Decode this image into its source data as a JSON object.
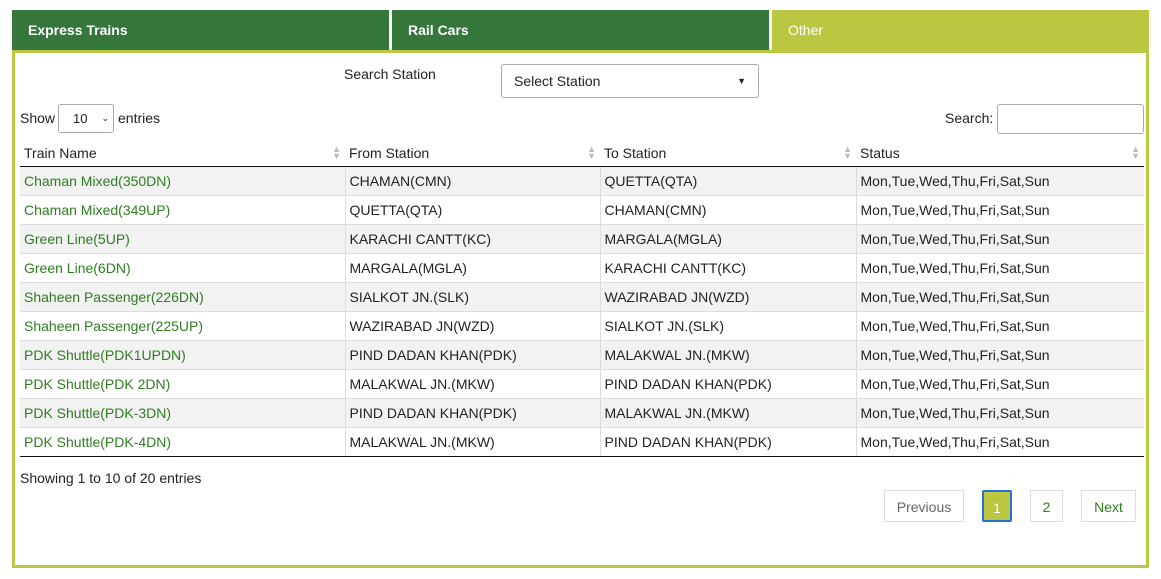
{
  "tabs": [
    "Express Trains",
    "Rail Cars",
    "Other"
  ],
  "active_tab": 2,
  "search_station": {
    "label": "Search Station",
    "placeholder": "Select Station"
  },
  "length": {
    "before": "Show",
    "value": "10",
    "after": "entries"
  },
  "search": {
    "label": "Search:"
  },
  "table": {
    "headers": [
      "Train Name",
      "From Station",
      "To Station",
      "Status"
    ],
    "rows": [
      [
        "Chaman Mixed(350DN)",
        "CHAMAN(CMN)",
        "QUETTA(QTA)",
        "Mon,Tue,Wed,Thu,Fri,Sat,Sun"
      ],
      [
        "Chaman Mixed(349UP)",
        "QUETTA(QTA)",
        "CHAMAN(CMN)",
        "Mon,Tue,Wed,Thu,Fri,Sat,Sun"
      ],
      [
        "Green Line(5UP)",
        "KARACHI CANTT(KC)",
        "MARGALA(MGLA)",
        "Mon,Tue,Wed,Thu,Fri,Sat,Sun"
      ],
      [
        "Green Line(6DN)",
        "MARGALA(MGLA)",
        "KARACHI CANTT(KC)",
        "Mon,Tue,Wed,Thu,Fri,Sat,Sun"
      ],
      [
        "Shaheen Passenger(226DN)",
        "SIALKOT JN.(SLK)",
        "WAZIRABAD JN(WZD)",
        "Mon,Tue,Wed,Thu,Fri,Sat,Sun"
      ],
      [
        "Shaheen Passenger(225UP)",
        "WAZIRABAD JN(WZD)",
        "SIALKOT JN.(SLK)",
        "Mon,Tue,Wed,Thu,Fri,Sat,Sun"
      ],
      [
        "PDK Shuttle(PDK1UPDN)",
        "PIND DADAN KHAN(PDK)",
        "MALAKWAL JN.(MKW)",
        "Mon,Tue,Wed,Thu,Fri,Sat,Sun"
      ],
      [
        "PDK Shuttle(PDK 2DN)",
        "MALAKWAL JN.(MKW)",
        "PIND DADAN KHAN(PDK)",
        "Mon,Tue,Wed,Thu,Fri,Sat,Sun"
      ],
      [
        "PDK Shuttle(PDK-3DN)",
        "PIND DADAN KHAN(PDK)",
        "MALAKWAL JN.(MKW)",
        "Mon,Tue,Wed,Thu,Fri,Sat,Sun"
      ],
      [
        "PDK Shuttle(PDK-4DN)",
        "MALAKWAL JN.(MKW)",
        "PIND DADAN KHAN(PDK)",
        "Mon,Tue,Wed,Thu,Fri,Sat,Sun"
      ]
    ]
  },
  "info": "Showing 1 to 10 of 20 entries",
  "pagination": {
    "previous": "Previous",
    "pages": [
      "1",
      "2"
    ],
    "next": "Next"
  }
}
